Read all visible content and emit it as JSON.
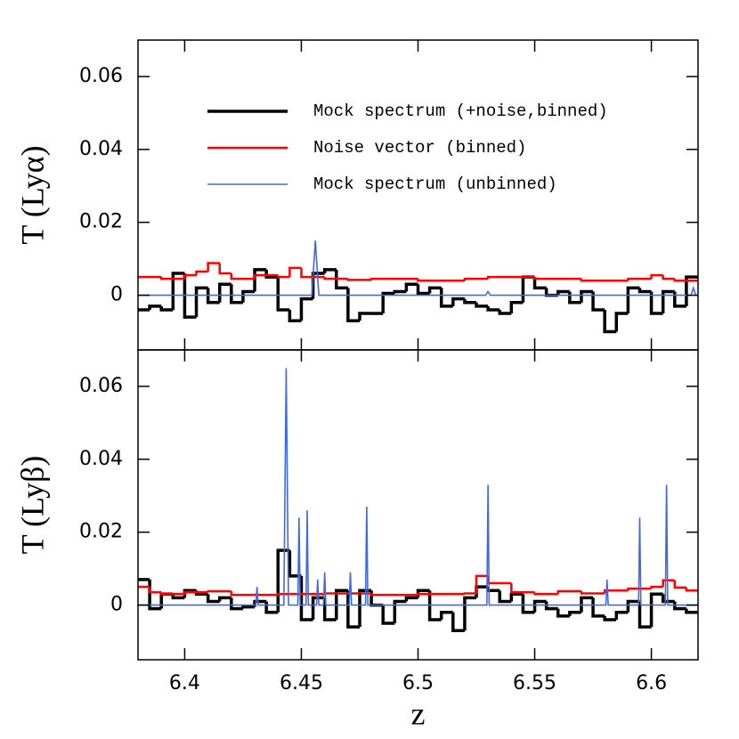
{
  "chart_data": [
    {
      "type": "line",
      "ylabel": "T (Lyα)",
      "xlim": [
        6.38,
        6.62
      ],
      "ylim": [
        -0.015,
        0.07
      ],
      "xticks": [
        6.4,
        6.45,
        6.5,
        6.55,
        6.6
      ],
      "yticks": [
        0,
        0.02,
        0.04,
        0.06
      ],
      "series": [
        {
          "name": "Mock spectrum (+noise,binned)",
          "color": "#000000",
          "step": true,
          "x": [
            6.38,
            6.385,
            6.39,
            6.395,
            6.4,
            6.405,
            6.41,
            6.415,
            6.42,
            6.425,
            6.43,
            6.435,
            6.44,
            6.445,
            6.45,
            6.455,
            6.46,
            6.465,
            6.47,
            6.475,
            6.48,
            6.485,
            6.49,
            6.495,
            6.5,
            6.505,
            6.51,
            6.515,
            6.52,
            6.525,
            6.53,
            6.535,
            6.54,
            6.545,
            6.55,
            6.555,
            6.56,
            6.565,
            6.57,
            6.575,
            6.58,
            6.585,
            6.59,
            6.595,
            6.6,
            6.605,
            6.61,
            6.615
          ],
          "values": [
            -0.004,
            -0.003,
            -0.004,
            0.006,
            -0.006,
            0.002,
            -0.002,
            0.003,
            -0.002,
            0.001,
            0.007,
            0.005,
            -0.004,
            -0.007,
            -0.001,
            0.006,
            0.007,
            0.002,
            -0.007,
            -0.005,
            -0.005,
            0.0005,
            0.001,
            0.003,
            0.0005,
            0.002,
            -0.003,
            -0.001,
            -0.002,
            -0.003,
            -0.004,
            -0.005,
            -0.002,
            0.005,
            0.002,
            0.0,
            0.001,
            -0.002,
            0.001,
            -0.004,
            -0.01,
            -0.005,
            0.002,
            0.001,
            -0.005,
            0.001,
            -0.003,
            0.005
          ]
        },
        {
          "name": "Noise vector (binned)",
          "color": "#ff0000",
          "step": true,
          "x": [
            6.38,
            6.39,
            6.4,
            6.405,
            6.41,
            6.415,
            6.42,
            6.43,
            6.44,
            6.445,
            6.45,
            6.46,
            6.47,
            6.48,
            6.5,
            6.52,
            6.53,
            6.55,
            6.57,
            6.59,
            6.6,
            6.605,
            6.61
          ],
          "values": [
            0.005,
            0.0045,
            0.0055,
            0.0065,
            0.0088,
            0.006,
            0.0045,
            0.0055,
            0.005,
            0.0075,
            0.005,
            0.0045,
            0.0042,
            0.0045,
            0.004,
            0.0045,
            0.005,
            0.0045,
            0.004,
            0.0045,
            0.0055,
            0.0045,
            0.004
          ]
        },
        {
          "name": "Mock spectrum (unbinned)",
          "color": "#4169e1",
          "step": false,
          "x": [
            6.38,
            6.4545,
            6.456,
            6.4575,
            6.529,
            6.53,
            6.531,
            6.617,
            6.618,
            6.619,
            6.62
          ],
          "values": [
            0,
            0,
            0.015,
            0,
            0,
            0.001,
            0,
            0,
            0.002,
            0,
            0
          ]
        }
      ]
    },
    {
      "type": "line",
      "ylabel": "T (Lyβ)",
      "xlabel": "z",
      "xlim": [
        6.38,
        6.62
      ],
      "ylim": [
        -0.015,
        0.07
      ],
      "xticks": [
        6.4,
        6.45,
        6.5,
        6.55,
        6.6
      ],
      "yticks": [
        0,
        0.02,
        0.04,
        0.06
      ],
      "series": [
        {
          "color": "#000000",
          "step": true,
          "x": [
            6.38,
            6.385,
            6.39,
            6.395,
            6.4,
            6.405,
            6.41,
            6.415,
            6.42,
            6.425,
            6.43,
            6.435,
            6.44,
            6.445,
            6.45,
            6.455,
            6.46,
            6.465,
            6.47,
            6.475,
            6.48,
            6.485,
            6.49,
            6.495,
            6.5,
            6.505,
            6.51,
            6.515,
            6.52,
            6.525,
            6.53,
            6.535,
            6.54,
            6.545,
            6.55,
            6.555,
            6.56,
            6.565,
            6.57,
            6.575,
            6.58,
            6.585,
            6.59,
            6.595,
            6.6,
            6.605,
            6.61,
            6.615
          ],
          "values": [
            0.007,
            -0.001,
            0.003,
            0.002,
            0.004,
            0.003,
            0.001,
            0.002,
            -0.001,
            -0.0005,
            0.001,
            -0.002,
            0.015,
            0.008,
            -0.004,
            0.002,
            -0.004,
            0.004,
            -0.006,
            0.004,
            0.0,
            -0.005,
            0.001,
            0.002,
            0.004,
            -0.004,
            -0.002,
            -0.007,
            0.002,
            0.005,
            0.004,
            0.001,
            0.003,
            -0.002,
            0.001,
            -0.001,
            -0.003,
            -0.002,
            0.002,
            -0.003,
            -0.004,
            -0.002,
            0.001,
            -0.006,
            0.003,
            0.001,
            -0.001,
            -0.002
          ]
        },
        {
          "color": "#ff0000",
          "step": true,
          "x": [
            6.38,
            6.385,
            6.39,
            6.4,
            6.41,
            6.42,
            6.44,
            6.46,
            6.48,
            6.5,
            6.52,
            6.525,
            6.53,
            6.54,
            6.55,
            6.56,
            6.57,
            6.58,
            6.59,
            6.6,
            6.605,
            6.61,
            6.615
          ],
          "values": [
            0.005,
            0.0035,
            0.003,
            0.0035,
            0.0038,
            0.0028,
            0.003,
            0.0032,
            0.0028,
            0.003,
            0.0032,
            0.008,
            0.006,
            0.0035,
            0.003,
            0.0038,
            0.0032,
            0.004,
            0.0045,
            0.005,
            0.0068,
            0.0048,
            0.004
          ]
        },
        {
          "color": "#4169e1",
          "step": false,
          "x": [
            6.38,
            6.4305,
            6.431,
            6.4315,
            6.4425,
            6.4435,
            6.4445,
            6.4485,
            6.449,
            6.4495,
            6.452,
            6.4525,
            6.453,
            6.4565,
            6.457,
            6.4575,
            6.4595,
            6.46,
            6.4605,
            6.4705,
            6.471,
            6.4715,
            6.4775,
            6.478,
            6.4785,
            6.5295,
            6.53,
            6.5305,
            6.5805,
            6.581,
            6.5815,
            6.5945,
            6.595,
            6.5955,
            6.606,
            6.6065,
            6.607,
            6.62
          ],
          "values": [
            0,
            0,
            0.005,
            0,
            0,
            0.065,
            0,
            0,
            0.024,
            0,
            0,
            0.026,
            0,
            0,
            0.007,
            0,
            0,
            0.009,
            0,
            0,
            0.009,
            0,
            0,
            0.027,
            0,
            0,
            0.033,
            0,
            0,
            0.007,
            0,
            0,
            0.024,
            0,
            0,
            0.033,
            0,
            0
          ]
        }
      ]
    }
  ]
}
